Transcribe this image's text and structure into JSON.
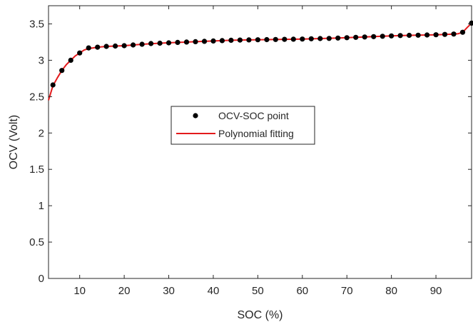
{
  "chart_data": {
    "type": "scatter",
    "title": "",
    "xlabel": "SOC (%)",
    "ylabel": "OCV (Volt)",
    "xlim": [
      3,
      98
    ],
    "ylim": [
      0,
      3.75
    ],
    "xticks": [
      10,
      20,
      30,
      40,
      50,
      60,
      70,
      80,
      90
    ],
    "yticks": [
      0,
      0.5,
      1,
      1.5,
      2,
      2.5,
      3,
      3.5
    ],
    "ytick_labels": [
      "0",
      "0.5",
      "1",
      "1.5",
      "2",
      "2.5",
      "3",
      "3.5"
    ],
    "grid": false,
    "legend_position": "center",
    "series": [
      {
        "name": "OCV-SOC point",
        "style": "markers",
        "color": "#000000",
        "x": [
          4,
          6,
          8,
          10,
          12,
          14,
          16,
          18,
          20,
          22,
          24,
          26,
          28,
          30,
          32,
          34,
          36,
          38,
          40,
          42,
          44,
          46,
          48,
          50,
          52,
          54,
          56,
          58,
          60,
          62,
          64,
          66,
          68,
          70,
          72,
          74,
          76,
          78,
          80,
          82,
          84,
          86,
          88,
          90,
          92,
          94,
          96,
          98
        ],
        "y": [
          2.66,
          2.86,
          3.0,
          3.1,
          3.17,
          3.18,
          3.19,
          3.195,
          3.2,
          3.21,
          3.22,
          3.23,
          3.235,
          3.24,
          3.245,
          3.25,
          3.255,
          3.26,
          3.265,
          3.27,
          3.275,
          3.278,
          3.28,
          3.282,
          3.284,
          3.286,
          3.288,
          3.29,
          3.292,
          3.295,
          3.298,
          3.3,
          3.305,
          3.31,
          3.315,
          3.32,
          3.325,
          3.33,
          3.335,
          3.34,
          3.343,
          3.345,
          3.348,
          3.35,
          3.355,
          3.36,
          3.385,
          3.51
        ]
      },
      {
        "name": "Polynomial fitting",
        "style": "line",
        "color": "#e31a1c",
        "x": [
          3,
          4,
          5,
          6,
          7,
          8,
          9,
          10,
          11,
          12,
          13,
          14,
          16,
          18,
          20,
          24,
          28,
          32,
          36,
          40,
          44,
          48,
          52,
          56,
          60,
          64,
          68,
          72,
          76,
          80,
          84,
          88,
          90,
          92,
          94,
          95,
          96,
          97,
          98
        ],
        "y": [
          2.45,
          2.65,
          2.76,
          2.86,
          2.94,
          3.0,
          3.06,
          3.1,
          3.14,
          3.16,
          3.17,
          3.18,
          3.19,
          3.195,
          3.2,
          3.22,
          3.235,
          3.245,
          3.255,
          3.265,
          3.275,
          3.28,
          3.284,
          3.288,
          3.292,
          3.298,
          3.305,
          3.315,
          3.325,
          3.335,
          3.343,
          3.348,
          3.35,
          3.355,
          3.36,
          3.365,
          3.385,
          3.45,
          3.51
        ]
      }
    ]
  }
}
